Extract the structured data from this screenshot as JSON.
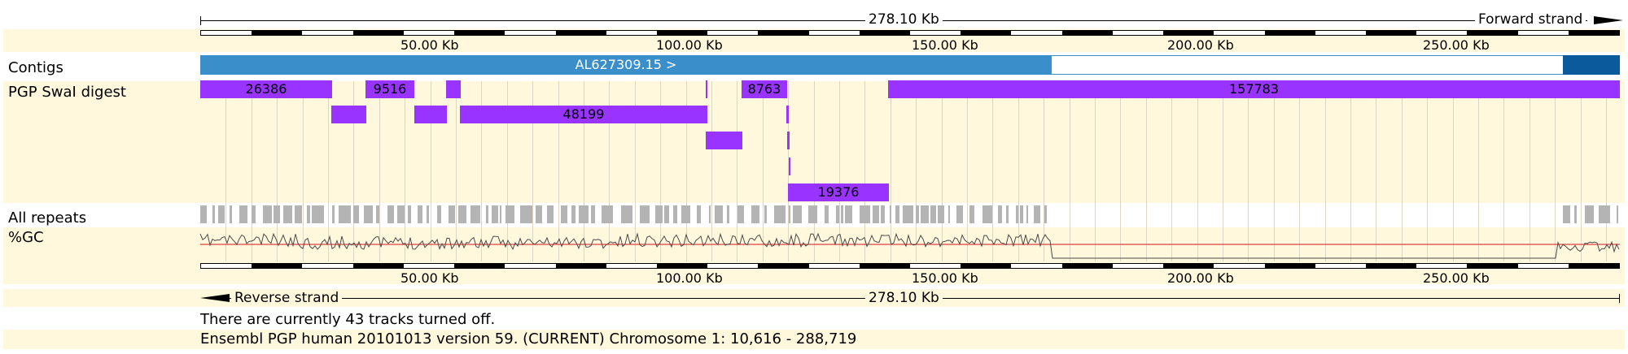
{
  "header": {
    "length_label": "278.10 Kb",
    "forward_label": "Forward strand"
  },
  "footer": {
    "length_label": "278.10 Kb",
    "reverse_label": "Reverse strand",
    "tracks_off_text": "There are currently 43 tracks turned off.",
    "location_text": "Ensembl PGP human 20101013 version 59. (CURRENT) Chromosome 1: 10,616 - 288,719"
  },
  "ruler": {
    "ticks": [
      "50.00 Kb",
      "100.00 Kb",
      "150.00 Kb",
      "200.00 Kb",
      "250.00 Kb"
    ]
  },
  "tracks": {
    "contigs": {
      "label": "Contigs",
      "name": "AL627309.15 >",
      "colors": {
        "main": "#3a8fcb",
        "end": "#0b5b9c",
        "gap": "#ffffff"
      }
    },
    "digest": {
      "label": "PGP SwaI digest",
      "color": "#9933ff",
      "fragment_labels": [
        "26386",
        "9516",
        "8763",
        "157783",
        "48199",
        "19376"
      ]
    },
    "repeats": {
      "label": "All repeats",
      "color": "#b4b4b4"
    },
    "gc": {
      "label": "%GC",
      "line_color": "#4a4a4a",
      "threshold_color": "#d5111b"
    }
  }
}
